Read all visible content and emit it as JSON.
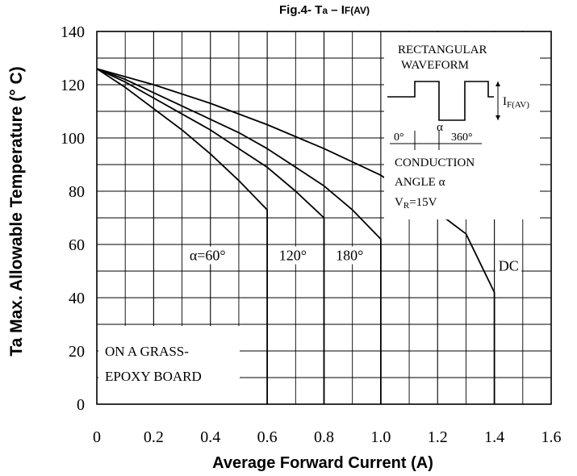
{
  "chart_data": {
    "type": "line",
    "title": "Fig.4- Ta – IF(AV)",
    "title_main": "Fig.4- T",
    "title_sub_a": "a",
    "title_dash": " – I",
    "title_sub_f": "F(AV)",
    "xlabel": "Average Forward Current (A)",
    "ylabel": "Ta Max. Allowable Temperature (° C)",
    "xlim": [
      0,
      1.6
    ],
    "ylim": [
      0,
      140
    ],
    "x_ticks": [
      0,
      0.2,
      0.4,
      0.6,
      0.8,
      1.0,
      1.2,
      1.4,
      1.6
    ],
    "x_tick_labels": [
      "0",
      "0.2",
      "0.4",
      "0.6",
      "0.8",
      "1.0",
      "1.2",
      "1.4",
      "1.6"
    ],
    "y_ticks": [
      0,
      20,
      40,
      60,
      80,
      100,
      120,
      140
    ],
    "y_tick_labels": [
      "0",
      "20",
      "40",
      "60",
      "80",
      "100",
      "120",
      "140"
    ],
    "grid": true,
    "series": [
      {
        "name": "α=60°",
        "x": [
          0,
          0.1,
          0.2,
          0.3,
          0.4,
          0.5,
          0.6,
          0.6
        ],
        "y": [
          126,
          119,
          111,
          103,
          94,
          84,
          73,
          0
        ]
      },
      {
        "name": "120°",
        "x": [
          0,
          0.1,
          0.2,
          0.3,
          0.4,
          0.5,
          0.6,
          0.7,
          0.8,
          0.8
        ],
        "y": [
          126,
          121,
          115,
          109,
          103,
          96,
          89,
          80,
          70,
          0
        ]
      },
      {
        "name": "180°",
        "x": [
          0,
          0.1,
          0.2,
          0.3,
          0.4,
          0.5,
          0.6,
          0.7,
          0.8,
          0.9,
          1.0,
          1.0
        ],
        "y": [
          126,
          122,
          117,
          112,
          107,
          102,
          96,
          89,
          82,
          73,
          62,
          0
        ]
      },
      {
        "name": "DC",
        "x": [
          0,
          0.2,
          0.4,
          0.6,
          0.8,
          1.0,
          1.1,
          1.2,
          1.3,
          1.4,
          1.4
        ],
        "y": [
          126,
          120,
          113,
          105,
          96,
          86,
          79,
          72,
          64,
          42,
          0
        ]
      }
    ],
    "series_labels": [
      {
        "text": "α=60°",
        "x": 0.39,
        "y": 55
      },
      {
        "text": "120°",
        "x": 0.69,
        "y": 55
      },
      {
        "text": "180°",
        "x": 0.89,
        "y": 55
      },
      {
        "text": "DC",
        "x": 1.45,
        "y": 51
      }
    ],
    "inset": {
      "title_line1": "RECTANGULAR",
      "title_line2": "WAVEFORM",
      "current_label_main": "I",
      "current_label_sub": "F(AV)",
      "alpha_label": "α",
      "zero_label": "0°",
      "full_label": "360°",
      "conduction_line1": "CONDUCTION",
      "conduction_line2": "ANGLE α",
      "vr_label_main": "V",
      "vr_label_sub": "R",
      "vr_label_value": "=15V"
    },
    "board_note_line1": "ON A GRASS-",
    "board_note_line2": "EPOXY BOARD"
  }
}
